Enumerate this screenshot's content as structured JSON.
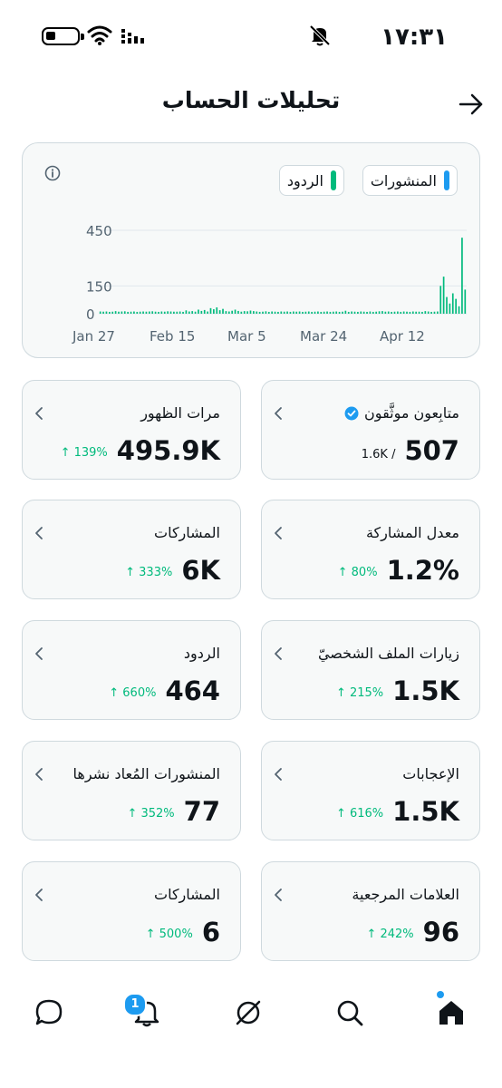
{
  "status_bar": {
    "time": "١٧:٣١"
  },
  "header": {
    "title": "تحليلات الحساب"
  },
  "chart": {
    "legend": {
      "posts": "المنشورات",
      "replies": "الردود"
    },
    "colors": {
      "posts": "#1d9bf0",
      "replies": "#00ba7c"
    }
  },
  "chart_data": {
    "type": "bar",
    "x_ticks": [
      "Jan 27",
      "Feb 15",
      "Mar 5",
      "Mar 24",
      "Apr 12"
    ],
    "y_ticks": [
      "0",
      "150",
      "450"
    ],
    "ylim": [
      0,
      450
    ],
    "series": [
      {
        "name": "",
        "color": "#00ba7c",
        "values": [
          12,
          11,
          12,
          10,
          11,
          14,
          11,
          12,
          13,
          10,
          11,
          12,
          10,
          11,
          12,
          11,
          12,
          13,
          11,
          10,
          12,
          11,
          13,
          12,
          11,
          11,
          12,
          10,
          18,
          12,
          14,
          11,
          22,
          15,
          20,
          12,
          30,
          24,
          34,
          19,
          26,
          14,
          12,
          16,
          22,
          15,
          11,
          14,
          13,
          17,
          14,
          12,
          10,
          11,
          13,
          10,
          12,
          11,
          10,
          12,
          11,
          12,
          10,
          12,
          11,
          12,
          10,
          11,
          12,
          10,
          11,
          12,
          10,
          11,
          12,
          10,
          11,
          12,
          10,
          11,
          16,
          10,
          12,
          11,
          10,
          12,
          11,
          10,
          12,
          10,
          11,
          13,
          14,
          11,
          12,
          10,
          11,
          12,
          10,
          12,
          11,
          10,
          12,
          11,
          11,
          10,
          14,
          12,
          10,
          11,
          12,
          150,
          200,
          90,
          55,
          110,
          80,
          40,
          410,
          130
        ]
      }
    ]
  },
  "stats": [
    {
      "label": "متابِعون موثَّقون",
      "value": "507",
      "sub": "1.6K /",
      "verified": true
    },
    {
      "label": "مرات الظهور",
      "value": "495.9K",
      "change": "↑ 139%"
    },
    {
      "label": "معدل المشاركة",
      "value": "1.2%",
      "change": "↑ 80%"
    },
    {
      "label": "المشاركات",
      "value": "6K",
      "change": "↑ 333%"
    },
    {
      "label": "زيارات الملف الشخصيّ",
      "value": "1.5K",
      "change": "↑ 215%"
    },
    {
      "label": "الردود",
      "value": "464",
      "change": "↑ 660%"
    },
    {
      "label": "الإعجابات",
      "value": "1.5K",
      "change": "↑ 616%"
    },
    {
      "label": "المنشورات المُعاد نشرها",
      "value": "77",
      "change": "↑ 352%"
    },
    {
      "label": "العلامات المرجعية",
      "value": "96",
      "change": "↑ 242%"
    },
    {
      "label": "المشاركات",
      "value": "6",
      "change": "↑ 500%"
    }
  ],
  "bottom_nav": {
    "notifications_badge": "1"
  }
}
